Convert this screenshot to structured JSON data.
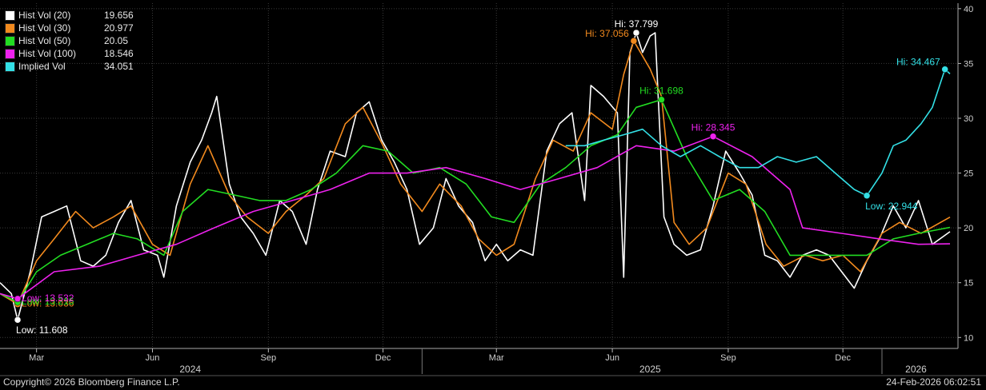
{
  "chart_data": {
    "type": "line",
    "y_axis": {
      "position": "right",
      "ylim": [
        9,
        40.5
      ],
      "ticks": [
        10,
        15,
        20,
        25,
        30,
        35,
        40
      ]
    },
    "x_axis": {
      "month_ticks": [
        {
          "label": "Mar",
          "date": "2024-03-01"
        },
        {
          "label": "Jun",
          "date": "2024-06-01"
        },
        {
          "label": "Sep",
          "date": "2024-09-01"
        },
        {
          "label": "Dec",
          "date": "2024-12-01"
        },
        {
          "label": "Mar",
          "date": "2025-03-01"
        },
        {
          "label": "Jun",
          "date": "2025-06-01"
        },
        {
          "label": "Sep",
          "date": "2025-09-01"
        },
        {
          "label": "Dec",
          "date": "2025-12-01"
        }
      ],
      "years": [
        {
          "label": "2024",
          "center": "2024-07-01"
        },
        {
          "label": "2025",
          "center": "2025-07-01"
        },
        {
          "label": "2026",
          "center": "2026-01-28"
        }
      ],
      "year_dividers": [
        "2025-01-01",
        "2026-01-01"
      ],
      "range": [
        "2024-02-01",
        "2026-02-24"
      ]
    },
    "series": [
      {
        "name": "Hist Vol (20)",
        "last": "19.656",
        "color": "#ffffff",
        "points": [
          [
            "2024-02-01",
            15.0
          ],
          [
            "2024-02-10",
            14.0
          ],
          [
            "2024-02-15",
            11.6
          ],
          [
            "2024-02-25",
            16.0
          ],
          [
            "2024-03-05",
            21.0
          ],
          [
            "2024-03-15",
            21.5
          ],
          [
            "2024-03-25",
            22.0
          ],
          [
            "2024-04-05",
            17.0
          ],
          [
            "2024-04-15",
            16.5
          ],
          [
            "2024-04-25",
            17.5
          ],
          [
            "2024-05-05",
            20.5
          ],
          [
            "2024-05-15",
            22.5
          ],
          [
            "2024-05-25",
            18.0
          ],
          [
            "2024-06-05",
            17.5
          ],
          [
            "2024-06-10",
            15.5
          ],
          [
            "2024-06-20",
            22.0
          ],
          [
            "2024-07-01",
            26.0
          ],
          [
            "2024-07-10",
            28.0
          ],
          [
            "2024-07-18",
            30.5
          ],
          [
            "2024-07-22",
            32.0
          ],
          [
            "2024-08-01",
            24.0
          ],
          [
            "2024-08-10",
            21.0
          ],
          [
            "2024-08-20",
            19.5
          ],
          [
            "2024-08-30",
            17.5
          ],
          [
            "2024-09-10",
            22.5
          ],
          [
            "2024-09-20",
            21.5
          ],
          [
            "2024-10-01",
            18.5
          ],
          [
            "2024-10-10",
            23.5
          ],
          [
            "2024-10-20",
            27.0
          ],
          [
            "2024-11-01",
            26.5
          ],
          [
            "2024-11-10",
            30.5
          ],
          [
            "2024-11-20",
            31.5
          ],
          [
            "2024-11-30",
            28.0
          ],
          [
            "2024-12-10",
            26.0
          ],
          [
            "2024-12-20",
            23.5
          ],
          [
            "2024-12-30",
            18.5
          ],
          [
            "2025-01-10",
            20.0
          ],
          [
            "2025-01-20",
            24.5
          ],
          [
            "2025-01-30",
            22.0
          ],
          [
            "2025-02-10",
            20.5
          ],
          [
            "2025-02-20",
            17.0
          ],
          [
            "2025-03-01",
            18.5
          ],
          [
            "2025-03-10",
            17.0
          ],
          [
            "2025-03-20",
            18.0
          ],
          [
            "2025-03-30",
            17.5
          ],
          [
            "2025-04-10",
            27.0
          ],
          [
            "2025-04-20",
            29.5
          ],
          [
            "2025-04-30",
            30.5
          ],
          [
            "2025-05-10",
            22.5
          ],
          [
            "2025-05-15",
            33.0
          ],
          [
            "2025-05-25",
            32.0
          ],
          [
            "2025-06-05",
            30.5
          ],
          [
            "2025-06-10",
            15.5
          ],
          [
            "2025-06-15",
            36.0
          ],
          [
            "2025-06-20",
            37.799
          ],
          [
            "2025-06-25",
            36.0
          ],
          [
            "2025-07-01",
            37.5
          ],
          [
            "2025-07-05",
            37.8
          ],
          [
            "2025-07-12",
            21.0
          ],
          [
            "2025-07-20",
            18.5
          ],
          [
            "2025-07-30",
            17.5
          ],
          [
            "2025-08-10",
            18.0
          ],
          [
            "2025-08-20",
            22.0
          ],
          [
            "2025-08-30",
            27.0
          ],
          [
            "2025-09-10",
            25.0
          ],
          [
            "2025-09-20",
            23.0
          ],
          [
            "2025-09-30",
            17.5
          ],
          [
            "2025-10-10",
            17.0
          ],
          [
            "2025-10-20",
            15.5
          ],
          [
            "2025-10-30",
            17.5
          ],
          [
            "2025-11-10",
            18.0
          ],
          [
            "2025-11-20",
            17.5
          ],
          [
            "2025-11-30",
            16.0
          ],
          [
            "2025-12-10",
            14.5
          ],
          [
            "2025-12-20",
            17.0
          ],
          [
            "2025-12-30",
            19.0
          ],
          [
            "2026-01-10",
            22.0
          ],
          [
            "2026-01-20",
            20.0
          ],
          [
            "2026-01-30",
            22.5
          ],
          [
            "2026-02-10",
            18.5
          ],
          [
            "2026-02-24",
            19.656
          ]
        ],
        "marker": {
          "date": "2024-02-15",
          "value": 11.608,
          "label": "Low: 11.608",
          "pos": "below"
        },
        "marker_hi": {
          "date": "2025-06-20",
          "value": 37.799,
          "label": "Hi: 37.799",
          "pos": "above"
        }
      },
      {
        "name": "Hist Vol (30)",
        "last": "20.977",
        "color": "#f28a1e",
        "points": [
          [
            "2024-02-01",
            14.0
          ],
          [
            "2024-02-15",
            13.036
          ],
          [
            "2024-03-01",
            17.0
          ],
          [
            "2024-03-15",
            19.0
          ],
          [
            "2024-04-01",
            21.5
          ],
          [
            "2024-04-15",
            20.0
          ],
          [
            "2024-05-01",
            21.0
          ],
          [
            "2024-05-15",
            22.0
          ],
          [
            "2024-06-01",
            18.5
          ],
          [
            "2024-06-15",
            17.5
          ],
          [
            "2024-07-01",
            24.0
          ],
          [
            "2024-07-15",
            27.5
          ],
          [
            "2024-08-01",
            23.0
          ],
          [
            "2024-08-15",
            21.0
          ],
          [
            "2024-09-01",
            19.5
          ],
          [
            "2024-09-15",
            21.5
          ],
          [
            "2024-10-01",
            23.0
          ],
          [
            "2024-10-15",
            24.5
          ],
          [
            "2024-11-01",
            29.5
          ],
          [
            "2024-11-15",
            31.0
          ],
          [
            "2024-12-01",
            27.5
          ],
          [
            "2024-12-15",
            24.0
          ],
          [
            "2025-01-01",
            21.5
          ],
          [
            "2025-01-15",
            24.0
          ],
          [
            "2025-02-01",
            22.0
          ],
          [
            "2025-02-15",
            19.0
          ],
          [
            "2025-03-01",
            17.5
          ],
          [
            "2025-03-15",
            18.5
          ],
          [
            "2025-04-01",
            24.5
          ],
          [
            "2025-04-15",
            28.0
          ],
          [
            "2025-05-01",
            27.0
          ],
          [
            "2025-05-15",
            30.5
          ],
          [
            "2025-06-01",
            29.0
          ],
          [
            "2025-06-10",
            34.0
          ],
          [
            "2025-06-18",
            37.056
          ],
          [
            "2025-07-01",
            34.5
          ],
          [
            "2025-07-10",
            32.0
          ],
          [
            "2025-07-20",
            20.5
          ],
          [
            "2025-08-01",
            18.5
          ],
          [
            "2025-08-15",
            20.0
          ],
          [
            "2025-09-01",
            25.0
          ],
          [
            "2025-09-15",
            24.0
          ],
          [
            "2025-10-01",
            18.5
          ],
          [
            "2025-10-15",
            16.5
          ],
          [
            "2025-11-01",
            17.5
          ],
          [
            "2025-11-15",
            17.0
          ],
          [
            "2025-12-01",
            17.5
          ],
          [
            "2025-12-15",
            16.0
          ],
          [
            "2026-01-01",
            19.5
          ],
          [
            "2026-01-15",
            20.5
          ],
          [
            "2026-02-01",
            19.5
          ],
          [
            "2026-02-24",
            20.977
          ]
        ],
        "marker": {
          "date": "2024-02-15",
          "value": 13.036,
          "label": "Low: 13.036",
          "pos": "right"
        },
        "marker_hi": {
          "date": "2025-06-18",
          "value": 37.056,
          "label": "Hi: 37.056",
          "pos": "left"
        }
      },
      {
        "name": "Hist Vol (50)",
        "last": "20.05",
        "color": "#22dd22",
        "points": [
          [
            "2024-02-01",
            14.0
          ],
          [
            "2024-02-15",
            13.216
          ],
          [
            "2024-03-01",
            16.0
          ],
          [
            "2024-03-20",
            17.5
          ],
          [
            "2024-04-10",
            18.5
          ],
          [
            "2024-05-01",
            19.5
          ],
          [
            "2024-05-20",
            19.0
          ],
          [
            "2024-06-10",
            17.5
          ],
          [
            "2024-06-25",
            21.5
          ],
          [
            "2024-07-15",
            23.5
          ],
          [
            "2024-08-05",
            23.0
          ],
          [
            "2024-08-25",
            22.5
          ],
          [
            "2024-09-15",
            22.5
          ],
          [
            "2024-10-05",
            23.5
          ],
          [
            "2024-10-25",
            25.0
          ],
          [
            "2024-11-15",
            27.5
          ],
          [
            "2024-12-05",
            27.0
          ],
          [
            "2024-12-25",
            25.0
          ],
          [
            "2025-01-15",
            25.5
          ],
          [
            "2025-02-05",
            24.0
          ],
          [
            "2025-02-25",
            21.0
          ],
          [
            "2025-03-15",
            20.5
          ],
          [
            "2025-04-05",
            24.0
          ],
          [
            "2025-04-25",
            25.5
          ],
          [
            "2025-05-15",
            27.5
          ],
          [
            "2025-06-05",
            28.5
          ],
          [
            "2025-06-20",
            31.0
          ],
          [
            "2025-07-10",
            31.698
          ],
          [
            "2025-07-30",
            26.5
          ],
          [
            "2025-08-20",
            22.5
          ],
          [
            "2025-09-10",
            23.5
          ],
          [
            "2025-09-30",
            21.5
          ],
          [
            "2025-10-20",
            17.5
          ],
          [
            "2025-11-10",
            17.5
          ],
          [
            "2025-12-01",
            17.5
          ],
          [
            "2025-12-20",
            17.5
          ],
          [
            "2026-01-10",
            19.0
          ],
          [
            "2026-01-30",
            19.5
          ],
          [
            "2026-02-24",
            20.05
          ]
        ],
        "marker": {
          "date": "2024-02-15",
          "value": 13.216,
          "label": "Low: 13.216",
          "pos": "right"
        },
        "marker_hi": {
          "date": "2025-07-10",
          "value": 31.698,
          "label": "Hi: 31.698",
          "pos": "above"
        }
      },
      {
        "name": "Hist Vol (100)",
        "last": "18.546",
        "color": "#ee22ee",
        "points": [
          [
            "2024-02-01",
            14.0
          ],
          [
            "2024-02-15",
            13.532
          ],
          [
            "2024-03-15",
            16.0
          ],
          [
            "2024-04-20",
            16.5
          ],
          [
            "2024-05-20",
            17.5
          ],
          [
            "2024-06-20",
            18.5
          ],
          [
            "2024-07-20",
            20.0
          ],
          [
            "2024-08-20",
            21.5
          ],
          [
            "2024-09-20",
            22.5
          ],
          [
            "2024-10-20",
            23.5
          ],
          [
            "2024-11-20",
            25.0
          ],
          [
            "2024-12-20",
            25.0
          ],
          [
            "2025-01-20",
            25.5
          ],
          [
            "2025-02-20",
            24.5
          ],
          [
            "2025-03-20",
            23.5
          ],
          [
            "2025-04-20",
            24.5
          ],
          [
            "2025-05-20",
            25.5
          ],
          [
            "2025-06-20",
            27.5
          ],
          [
            "2025-07-20",
            27.0
          ],
          [
            "2025-08-20",
            28.345
          ],
          [
            "2025-09-20",
            26.5
          ],
          [
            "2025-10-20",
            23.5
          ],
          [
            "2025-10-30",
            20.0
          ],
          [
            "2025-11-30",
            19.5
          ],
          [
            "2025-12-30",
            19.0
          ],
          [
            "2026-01-30",
            18.5
          ],
          [
            "2026-02-24",
            18.546
          ]
        ],
        "marker": {
          "date": "2024-02-15",
          "value": 13.532,
          "label": "Low: 13.532",
          "pos": "right"
        },
        "marker_hi": {
          "date": "2025-08-20",
          "value": 28.345,
          "label": "Hi: 28.345",
          "pos": "above"
        }
      },
      {
        "name": "Implied Vol",
        "last": "34.051",
        "color": "#33e0e6",
        "points": [
          [
            "2025-04-25",
            27.5
          ],
          [
            "2025-05-10",
            27.5
          ],
          [
            "2025-05-25",
            28.0
          ],
          [
            "2025-06-10",
            28.5
          ],
          [
            "2025-06-25",
            29.0
          ],
          [
            "2025-07-10",
            27.5
          ],
          [
            "2025-07-25",
            26.5
          ],
          [
            "2025-08-10",
            27.5
          ],
          [
            "2025-08-25",
            26.5
          ],
          [
            "2025-09-10",
            25.5
          ],
          [
            "2025-09-25",
            25.5
          ],
          [
            "2025-10-10",
            26.5
          ],
          [
            "2025-10-25",
            26.0
          ],
          [
            "2025-11-10",
            26.5
          ],
          [
            "2025-11-25",
            25.0
          ],
          [
            "2025-12-10",
            23.5
          ],
          [
            "2025-12-20",
            22.944
          ],
          [
            "2026-01-01",
            25.0
          ],
          [
            "2026-01-10",
            27.5
          ],
          [
            "2026-01-20",
            28.0
          ],
          [
            "2026-02-01",
            29.5
          ],
          [
            "2026-02-10",
            31.0
          ],
          [
            "2026-02-20",
            34.467
          ],
          [
            "2026-02-24",
            34.051
          ]
        ],
        "marker": {
          "date": "2025-12-20",
          "value": 22.944,
          "label": "Low: 22.944",
          "pos": "below"
        },
        "marker_hi": {
          "date": "2026-02-20",
          "value": 34.467,
          "label": "Hi: 34.467",
          "pos": "left"
        }
      }
    ]
  },
  "footer": {
    "copyright": "Copyright© 2026 Bloomberg Finance L.P.",
    "timestamp": "24-Feb-2026 06:02:51"
  }
}
